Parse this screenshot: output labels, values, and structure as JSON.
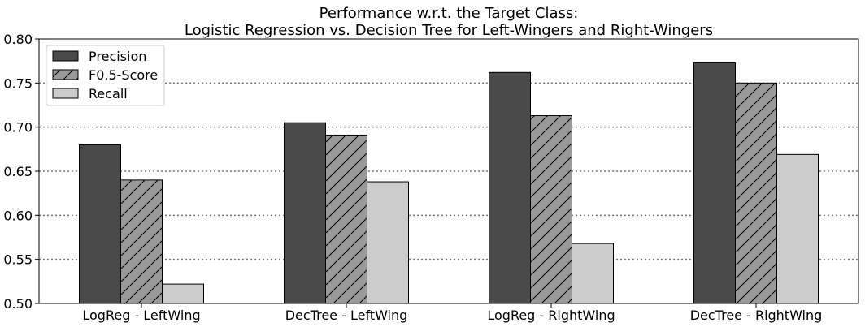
{
  "chart_data": {
    "type": "bar",
    "title": "Performance w.r.t. the Target Class:",
    "subtitle": "Logistic Regression vs. Decision Tree for Left-Wingers and Right-Wingers",
    "xlabel": "",
    "ylabel": "",
    "ylim": [
      0.5,
      0.8
    ],
    "yticks": [
      "0.50",
      "0.55",
      "0.60",
      "0.65",
      "0.70",
      "0.75",
      "0.80"
    ],
    "grid": "horizontal dotted",
    "legend_position": "top-left",
    "categories": [
      "LogReg - LeftWing",
      "DecTree - LeftWing",
      "LogReg - RightWing",
      "DecTree - RightWing"
    ],
    "series": [
      {
        "name": "Precision",
        "values": [
          0.68,
          0.705,
          0.762,
          0.773
        ],
        "color": "#4a4a4a",
        "hatch": false
      },
      {
        "name": "F0.5-Score",
        "values": [
          0.64,
          0.691,
          0.713,
          0.75
        ],
        "color": "#999999",
        "hatch": true
      },
      {
        "name": "Recall",
        "values": [
          0.522,
          0.638,
          0.568,
          0.669
        ],
        "color": "#cccccc",
        "hatch": false
      }
    ]
  }
}
